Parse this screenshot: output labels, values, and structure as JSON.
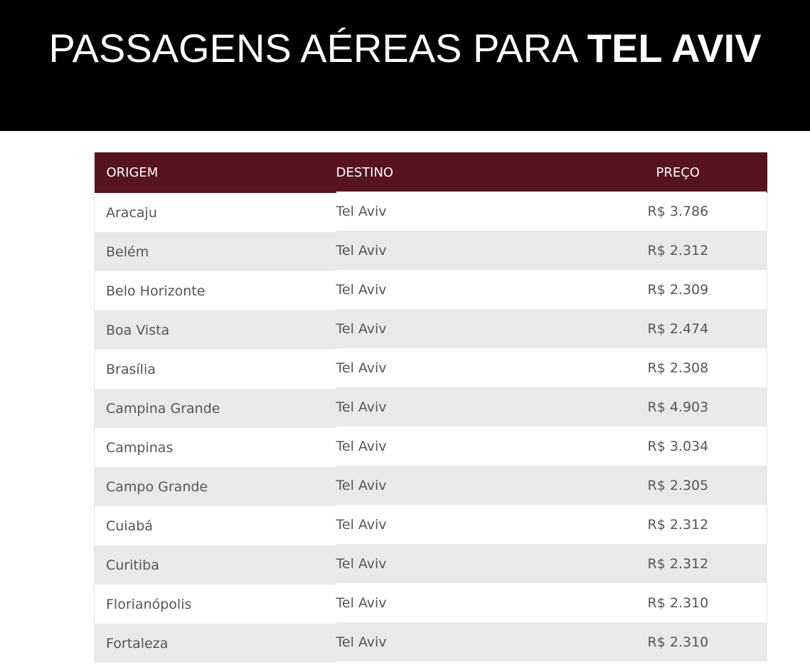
{
  "hero": {
    "title_light": "PASSAGENS AÉREAS PARA ",
    "title_strong": "TEL AVIV"
  },
  "table": {
    "headers": {
      "origin": "ORIGEM",
      "destination": "DESTINO",
      "price": "PREÇO"
    },
    "rows": [
      {
        "origin": "Aracaju",
        "destination": "Tel Aviv",
        "price": "R$ 3.786"
      },
      {
        "origin": "Belém",
        "destination": "Tel Aviv",
        "price": "R$ 2.312"
      },
      {
        "origin": "Belo Horizonte",
        "destination": "Tel Aviv",
        "price": "R$ 2.309"
      },
      {
        "origin": "Boa Vista",
        "destination": "Tel Aviv",
        "price": "R$ 2.474"
      },
      {
        "origin": "Brasília",
        "destination": "Tel Aviv",
        "price": "R$ 2.308"
      },
      {
        "origin": "Campina Grande",
        "destination": "Tel Aviv",
        "price": "R$ 4.903"
      },
      {
        "origin": "Campinas",
        "destination": "Tel Aviv",
        "price": "R$ 3.034"
      },
      {
        "origin": "Campo Grande",
        "destination": "Tel Aviv",
        "price": "R$ 2.305"
      },
      {
        "origin": "Cuiabá",
        "destination": "Tel Aviv",
        "price": "R$ 2.312"
      },
      {
        "origin": "Curitiba",
        "destination": "Tel Aviv",
        "price": "R$ 2.312"
      },
      {
        "origin": "Florianópolis",
        "destination": "Tel Aviv",
        "price": "R$ 2.310"
      },
      {
        "origin": "Fortaleza",
        "destination": "Tel Aviv",
        "price": "R$ 2.310"
      }
    ]
  },
  "colors": {
    "header_bg": "#561320",
    "hero_bg": "#000000",
    "row_alt_bg": "#e9e9e9"
  }
}
